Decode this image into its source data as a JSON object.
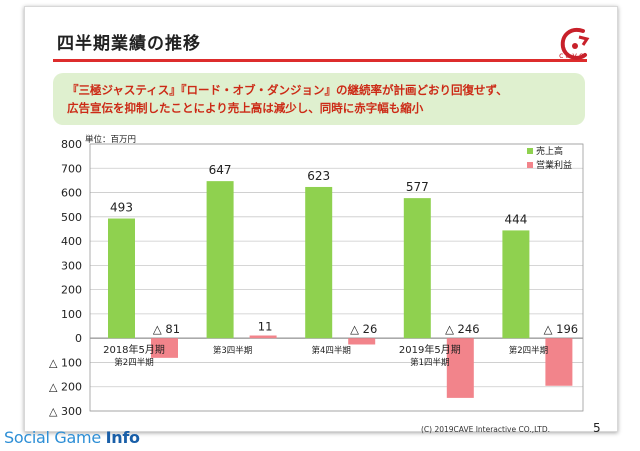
{
  "slide": {
    "title": "四半期業績の推移",
    "logo_text": "cave",
    "banner_line1": "『三極ジャスティス』『ロード・オブ・ダンジョン』の継続率が計画どおり回復せず、",
    "banner_line2": "広告宣伝を抑制したことにより売上高は減少し、同時に赤字幅も縮小",
    "unit_label": "単位：百万円",
    "copyright": "(C) 2019CAVE Interactive CO.,LTD.",
    "page_number": "5"
  },
  "watermark": {
    "prefix": "Social Game ",
    "suffix": "Info"
  },
  "chart_data": {
    "type": "bar",
    "categories": [
      [
        "2018年5月期",
        "第2四半期"
      ],
      [
        "第3四半期"
      ],
      [
        "第4四半期"
      ],
      [
        "2019年5月期",
        "第1四半期"
      ],
      [
        "第2四半期"
      ]
    ],
    "series": [
      {
        "name": "売上高",
        "color": "#8fd14f",
        "values": [
          493,
          647,
          623,
          577,
          444
        ],
        "labels": [
          "493",
          "647",
          "623",
          "577",
          "444"
        ]
      },
      {
        "name": "営業利益",
        "color": "#f2848b",
        "values": [
          -81,
          11,
          -26,
          -246,
          -196
        ],
        "labels": [
          "△ 81",
          "11",
          "△ 26",
          "△ 246",
          "△ 196"
        ]
      }
    ],
    "ylim": [
      -300,
      800
    ],
    "yticks": [
      800,
      700,
      600,
      500,
      400,
      300,
      200,
      100,
      0,
      -100,
      -200,
      -300
    ],
    "ytick_labels": [
      "800",
      "700",
      "600",
      "500",
      "400",
      "300",
      "200",
      "100",
      "0",
      "△ 100",
      "△ 200",
      "△ 300"
    ],
    "legend_position": "top-right",
    "grid": true
  }
}
